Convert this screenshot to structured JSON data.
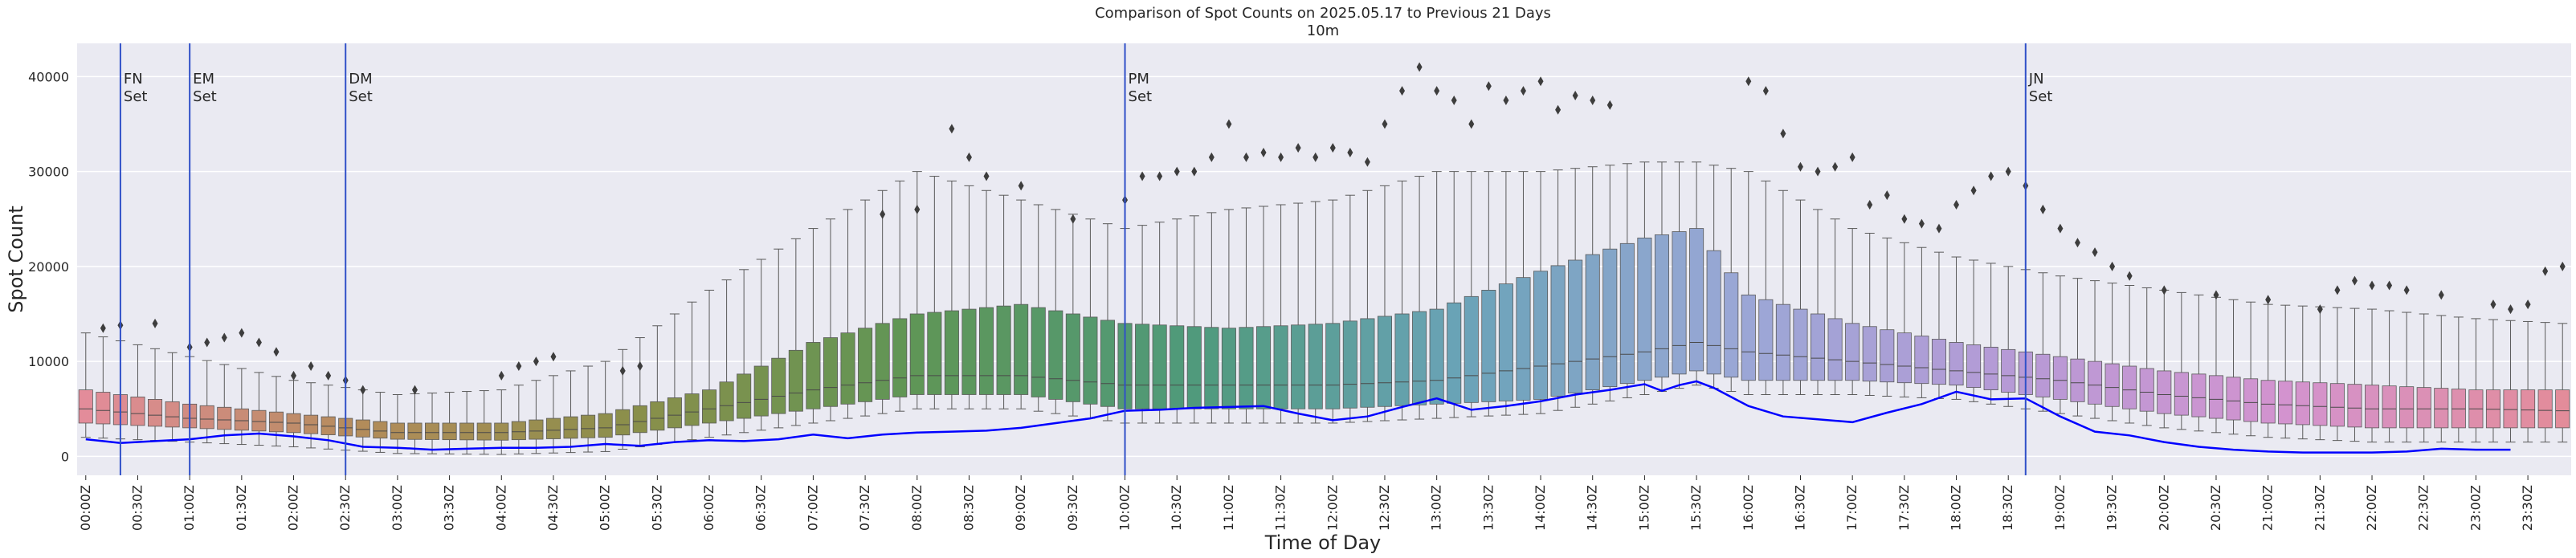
{
  "chart_data": {
    "type": "box",
    "title": "Comparison of Spot Counts on 2025.05.17 to Previous 21 Days",
    "subtitle": "10m",
    "xlabel": "Time of Day",
    "ylabel": "Spot Count",
    "ylim": [
      -2000,
      43500
    ],
    "yticks": [
      0,
      10000,
      20000,
      30000,
      40000
    ],
    "ytick_labels": [
      "0",
      "10000",
      "20000",
      "30000",
      "40000"
    ],
    "bin_minutes": 10,
    "n_bins": 144,
    "xticks": [
      "00:00Z",
      "00:30Z",
      "01:00Z",
      "01:30Z",
      "02:00Z",
      "02:30Z",
      "03:00Z",
      "03:30Z",
      "04:00Z",
      "04:30Z",
      "05:00Z",
      "05:30Z",
      "06:00Z",
      "06:30Z",
      "07:00Z",
      "07:30Z",
      "08:00Z",
      "08:30Z",
      "09:00Z",
      "09:30Z",
      "10:00Z",
      "10:30Z",
      "11:00Z",
      "11:30Z",
      "12:00Z",
      "12:30Z",
      "13:00Z",
      "13:30Z",
      "14:00Z",
      "14:30Z",
      "15:00Z",
      "15:30Z",
      "16:00Z",
      "16:30Z",
      "17:00Z",
      "17:30Z",
      "18:00Z",
      "18:30Z",
      "19:00Z",
      "19:30Z",
      "20:00Z",
      "20:30Z",
      "21:00Z",
      "21:30Z",
      "22:00Z",
      "22:30Z",
      "23:00Z",
      "23:30Z"
    ],
    "box_anchors_time": [
      "00:00Z",
      "01:00Z",
      "02:00Z",
      "03:00Z",
      "04:00Z",
      "05:00Z",
      "06:00Z",
      "07:00Z",
      "08:00Z",
      "09:00Z",
      "10:00Z",
      "11:00Z",
      "12:00Z",
      "13:00Z",
      "14:00Z",
      "15:00Z",
      "15:30Z",
      "16:00Z",
      "17:00Z",
      "18:00Z",
      "19:00Z",
      "20:00Z",
      "21:00Z",
      "22:00Z",
      "23:00Z",
      "23:50Z"
    ],
    "box_q1": [
      3500,
      3000,
      2500,
      1800,
      1700,
      2000,
      3500,
      5000,
      6500,
      6500,
      5000,
      5000,
      5000,
      5500,
      6000,
      8000,
      9000,
      8000,
      8000,
      7500,
      6000,
      4500,
      3500,
      3000,
      3000,
      3000
    ],
    "box_median": [
      5000,
      4000,
      3500,
      2500,
      2500,
      3000,
      5000,
      7000,
      8500,
      8500,
      7500,
      7500,
      7500,
      8000,
      9500,
      11000,
      12000,
      11000,
      10000,
      9000,
      8000,
      6500,
      5500,
      5000,
      5000,
      4800
    ],
    "box_q3": [
      7000,
      5500,
      4500,
      3500,
      3500,
      4500,
      7000,
      12000,
      15000,
      16000,
      14000,
      13500,
      14000,
      15500,
      19500,
      23000,
      24000,
      17000,
      14000,
      12000,
      10500,
      9000,
      8000,
      7500,
      7000,
      7000
    ],
    "whisker_high": [
      13000,
      10500,
      8000,
      6500,
      7000,
      10000,
      17500,
      24000,
      30000,
      27000,
      24000,
      26000,
      27000,
      30000,
      30000,
      31000,
      31000,
      30000,
      24000,
      21000,
      19000,
      17500,
      16000,
      15500,
      14500,
      14000
    ],
    "outliers_time": [
      "00:10Z",
      "00:20Z",
      "00:40Z",
      "01:00Z",
      "01:10Z",
      "01:20Z",
      "01:30Z",
      "01:40Z",
      "01:50Z",
      "02:00Z",
      "02:10Z",
      "02:20Z",
      "02:30Z",
      "02:40Z",
      "03:10Z",
      "04:00Z",
      "04:10Z",
      "04:20Z",
      "04:30Z",
      "05:10Z",
      "05:20Z",
      "07:40Z",
      "08:00Z",
      "08:20Z",
      "08:30Z",
      "08:40Z",
      "09:00Z",
      "09:30Z",
      "10:00Z",
      "10:10Z",
      "10:20Z",
      "10:30Z",
      "10:40Z",
      "10:50Z",
      "11:00Z",
      "11:10Z",
      "11:20Z",
      "11:30Z",
      "11:40Z",
      "11:50Z",
      "12:00Z",
      "12:10Z",
      "12:20Z",
      "12:30Z",
      "12:40Z",
      "12:50Z",
      "13:00Z",
      "13:10Z",
      "13:20Z",
      "13:30Z",
      "13:40Z",
      "13:50Z",
      "14:00Z",
      "14:10Z",
      "14:20Z",
      "14:30Z",
      "14:40Z",
      "16:00Z",
      "16:10Z",
      "16:20Z",
      "16:30Z",
      "16:40Z",
      "16:50Z",
      "17:00Z",
      "17:10Z",
      "17:20Z",
      "17:30Z",
      "17:40Z",
      "17:50Z",
      "18:00Z",
      "18:10Z",
      "18:20Z",
      "18:30Z",
      "18:40Z",
      "18:50Z",
      "19:00Z",
      "19:10Z",
      "19:20Z",
      "19:30Z",
      "19:40Z",
      "20:00Z",
      "20:30Z",
      "21:00Z",
      "21:30Z",
      "21:40Z",
      "21:50Z",
      "22:00Z",
      "22:10Z",
      "22:20Z",
      "22:40Z",
      "23:10Z",
      "23:20Z",
      "23:30Z",
      "23:40Z",
      "23:50Z"
    ],
    "outliers_value": [
      13500,
      13800,
      14000,
      11500,
      12000,
      12500,
      13000,
      12000,
      11000,
      8500,
      9500,
      8500,
      8000,
      7000,
      7000,
      8500,
      9500,
      10000,
      10500,
      9000,
      9500,
      25500,
      26000,
      34500,
      31500,
      29500,
      28500,
      25000,
      27000,
      29500,
      29500,
      30000,
      30000,
      31500,
      35000,
      31500,
      32000,
      31500,
      32500,
      31500,
      32500,
      32000,
      31000,
      35000,
      38500,
      41000,
      38500,
      37500,
      35000,
      39000,
      37500,
      38500,
      39500,
      36500,
      38000,
      37500,
      37000,
      39500,
      38500,
      34000,
      30500,
      30000,
      30500,
      31500,
      26500,
      27500,
      25000,
      24500,
      24000,
      26500,
      28000,
      29500,
      30000,
      28500,
      26000,
      24000,
      22500,
      21500,
      20000,
      19000,
      17500,
      17000,
      16500,
      15500,
      17500,
      18500,
      18000,
      18000,
      17500,
      17000,
      16000,
      15500,
      16000,
      19500,
      20000
    ],
    "series": [
      {
        "name": "2025.05.17",
        "color": "#0000ff",
        "x": [
          "00:00Z",
          "00:20Z",
          "00:40Z",
          "01:00Z",
          "01:20Z",
          "01:40Z",
          "02:00Z",
          "02:20Z",
          "02:40Z",
          "03:00Z",
          "03:20Z",
          "03:40Z",
          "04:00Z",
          "04:20Z",
          "04:40Z",
          "05:00Z",
          "05:20Z",
          "05:40Z",
          "06:00Z",
          "06:20Z",
          "06:40Z",
          "07:00Z",
          "07:20Z",
          "07:40Z",
          "08:00Z",
          "08:20Z",
          "08:40Z",
          "09:00Z",
          "09:20Z",
          "09:40Z",
          "10:00Z",
          "10:20Z",
          "10:40Z",
          "11:00Z",
          "11:20Z",
          "11:40Z",
          "12:00Z",
          "12:20Z",
          "12:40Z",
          "13:00Z",
          "13:20Z",
          "13:40Z",
          "14:00Z",
          "14:20Z",
          "14:40Z",
          "15:00Z",
          "15:10Z",
          "15:20Z",
          "15:30Z",
          "15:40Z",
          "16:00Z",
          "16:20Z",
          "16:40Z",
          "17:00Z",
          "17:20Z",
          "17:40Z",
          "18:00Z",
          "18:20Z",
          "18:40Z",
          "19:00Z",
          "19:20Z",
          "19:40Z",
          "20:00Z",
          "20:20Z",
          "20:40Z",
          "21:00Z",
          "21:20Z",
          "21:40Z",
          "22:00Z",
          "22:20Z",
          "22:40Z",
          "23:00Z",
          "23:20Z"
        ],
        "values": [
          1800,
          1400,
          1600,
          1800,
          2200,
          2400,
          2100,
          1700,
          1000,
          900,
          700,
          800,
          900,
          900,
          1000,
          1300,
          1100,
          1500,
          1700,
          1600,
          1800,
          2300,
          1900,
          2300,
          2500,
          2600,
          2700,
          3000,
          3500,
          4000,
          4800,
          4900,
          5100,
          5200,
          5300,
          4500,
          3800,
          4200,
          5200,
          6100,
          4900,
          5300,
          5800,
          6500,
          7000,
          7600,
          6900,
          7500,
          7900,
          7200,
          5300,
          4200,
          3900,
          3600,
          4600,
          5500,
          6800,
          6000,
          6100,
          4200,
          2600,
          2200,
          1500,
          1000,
          700,
          500,
          400,
          400,
          400,
          500,
          800,
          700,
          700
        ]
      }
    ],
    "event_lines": [
      {
        "time": "00:20Z",
        "label": "FN\nSet"
      },
      {
        "time": "01:00Z",
        "label": "EM\nSet"
      },
      {
        "time": "02:30Z",
        "label": "DM\nSet"
      },
      {
        "time": "10:00Z",
        "label": "PM\nSet"
      },
      {
        "time": "18:40Z",
        "label": "JN\nSet"
      }
    ],
    "palette_hues": [
      "#e38c9a",
      "#b38c5a",
      "#8a8f4a",
      "#5f9656",
      "#4f9a7a",
      "#6aa3b8",
      "#9aa7d6",
      "#b69ad6",
      "#d393cf",
      "#e38c9a"
    ]
  }
}
